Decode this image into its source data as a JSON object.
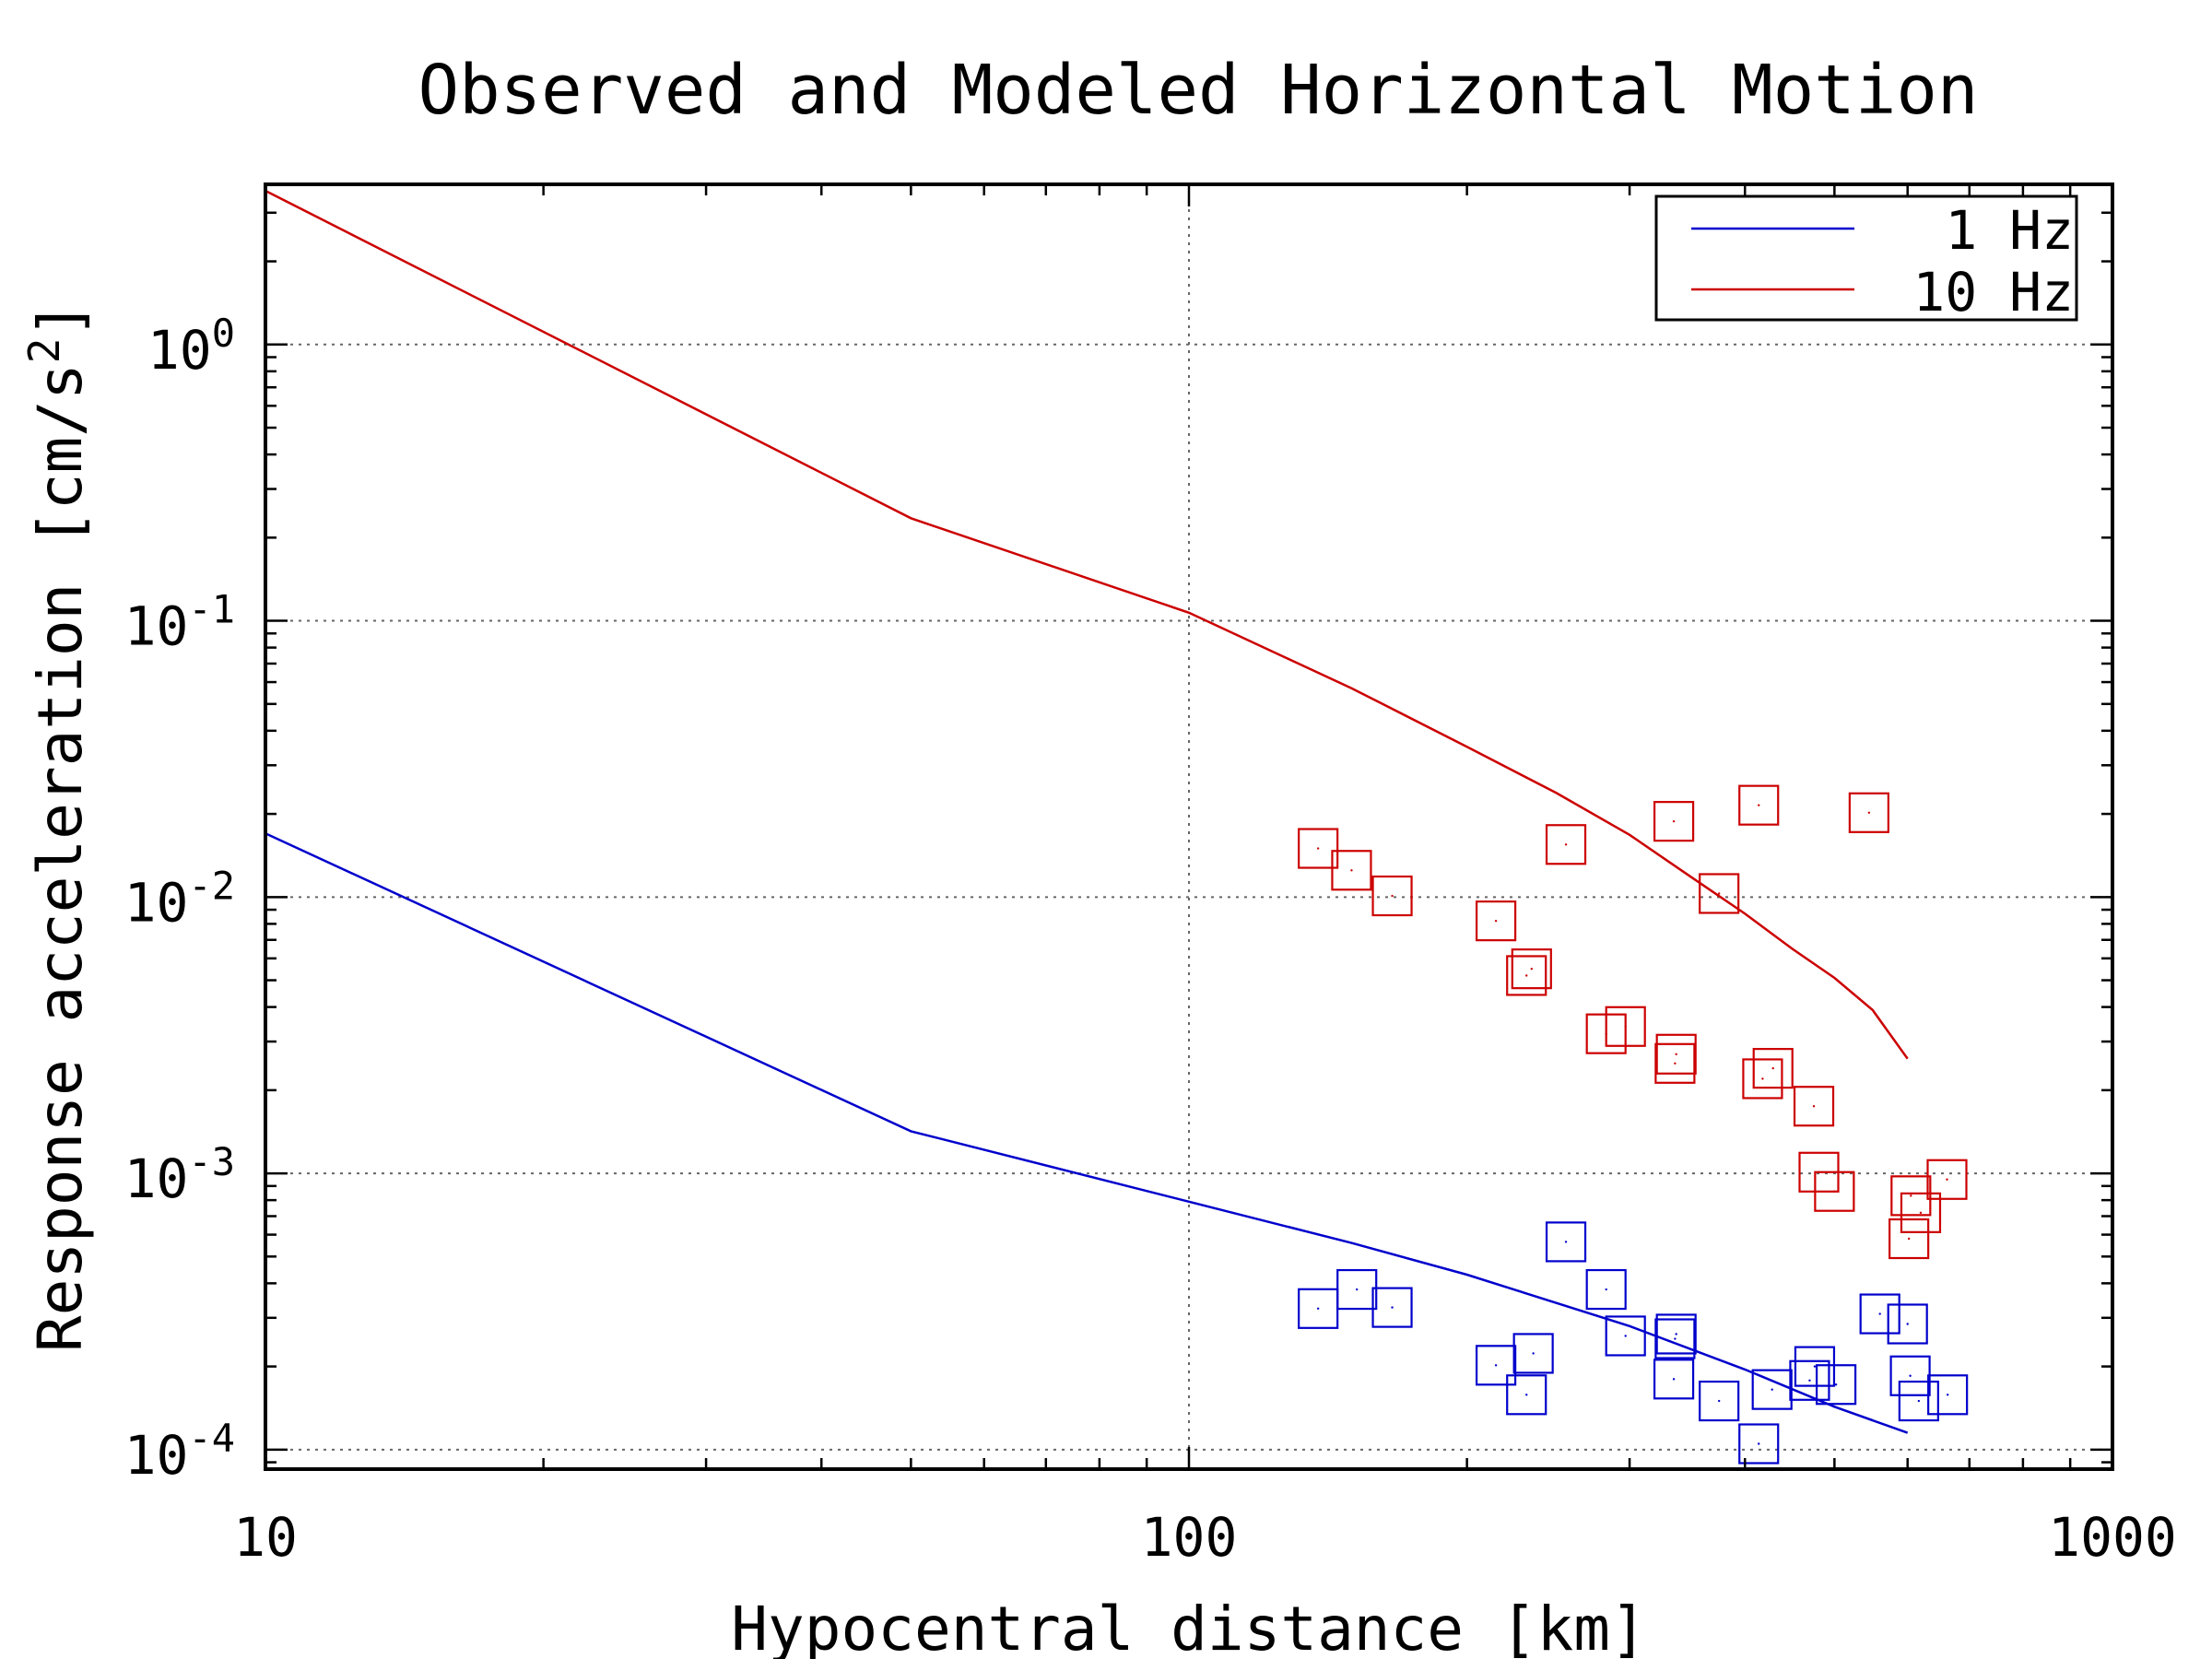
{
  "chart_data": {
    "type": "scatter",
    "title": "Observed and Modeled Horizontal Motion",
    "xlabel": "Hypocentral distance [km]",
    "ylabel_main": "Response acceleration [cm/s",
    "ylabel_sup": "2",
    "ylabel_end": "]",
    "x_scale": "log",
    "y_scale": "log",
    "xlim": [
      10,
      1000
    ],
    "ylim": [
      8.5e-05,
      3.8
    ],
    "grid": true,
    "legend_position": "top-right",
    "x_ticks": [
      {
        "value": 10,
        "label": "10"
      },
      {
        "value": 100,
        "label": "100"
      },
      {
        "value": 1000,
        "label": "1000"
      }
    ],
    "y_ticks": [
      {
        "value": 1,
        "base": "10",
        "exp": "0"
      },
      {
        "value": 0.1,
        "base": "10",
        "exp": "-1"
      },
      {
        "value": 0.01,
        "base": "10",
        "exp": "-2"
      },
      {
        "value": 0.001,
        "base": "10",
        "exp": "-3"
      },
      {
        "value": 0.0001,
        "base": "10",
        "exp": "-4"
      }
    ],
    "series": [
      {
        "name": "1 Hz",
        "color": "#0000cc",
        "line": {
          "x": [
            10,
            50,
            100,
            150,
            200,
            300,
            400,
            500,
            600
          ],
          "y": [
            0.017,
            0.00142,
            0.00079,
            0.00056,
            0.00043,
            0.00028,
            0.000195,
            0.000143,
            0.000115
          ]
        },
        "points": {
          "x": [
            138,
            152,
            166,
            215,
            232,
            236,
            256,
            283,
            297,
            335,
            336,
            337,
            375,
            414,
            428,
            470,
            476,
            502,
            560,
            600,
            604,
            617,
            663
          ],
          "y": [
            0.000324,
            0.00038,
            0.000327,
            0.000202,
            0.000158,
            0.000223,
            0.000565,
            0.00038,
            0.000258,
            0.00018,
            0.000252,
            0.000262,
            0.00015,
            0.000105,
            0.000165,
            0.000178,
            0.0002,
            0.000172,
            0.00031,
            0.000285,
            0.000185,
            0.00015,
            0.000158
          ]
        }
      },
      {
        "name": "10 Hz",
        "color": "#cc0000",
        "line": {
          "x": [
            10,
            50,
            100,
            150,
            200,
            250,
            300,
            350,
            400,
            450,
            500,
            550,
            600
          ],
          "y": [
            3.6,
            0.235,
            0.107,
            0.057,
            0.035,
            0.0238,
            0.0168,
            0.0118,
            0.0087,
            0.0065,
            0.0051,
            0.0039,
            0.0026
          ]
        },
        "points": {
          "x": [
            138,
            150,
            166,
            215,
            232,
            235,
            256,
            283,
            297,
            335,
            336,
            337,
            375,
            414,
            418,
            429,
            475,
            481,
            500,
            545,
            602,
            605,
            620,
            662
          ],
          "y": [
            0.015,
            0.0125,
            0.0101,
            0.0082,
            0.0052,
            0.0055,
            0.0155,
            0.0032,
            0.0034,
            0.0188,
            0.0025,
            0.0027,
            0.0103,
            0.0215,
            0.0022,
            0.0024,
            0.00175,
            0.00101,
            0.00086,
            0.0202,
            0.00058,
            0.00083,
            0.00072,
            0.00095
          ]
        }
      }
    ]
  }
}
